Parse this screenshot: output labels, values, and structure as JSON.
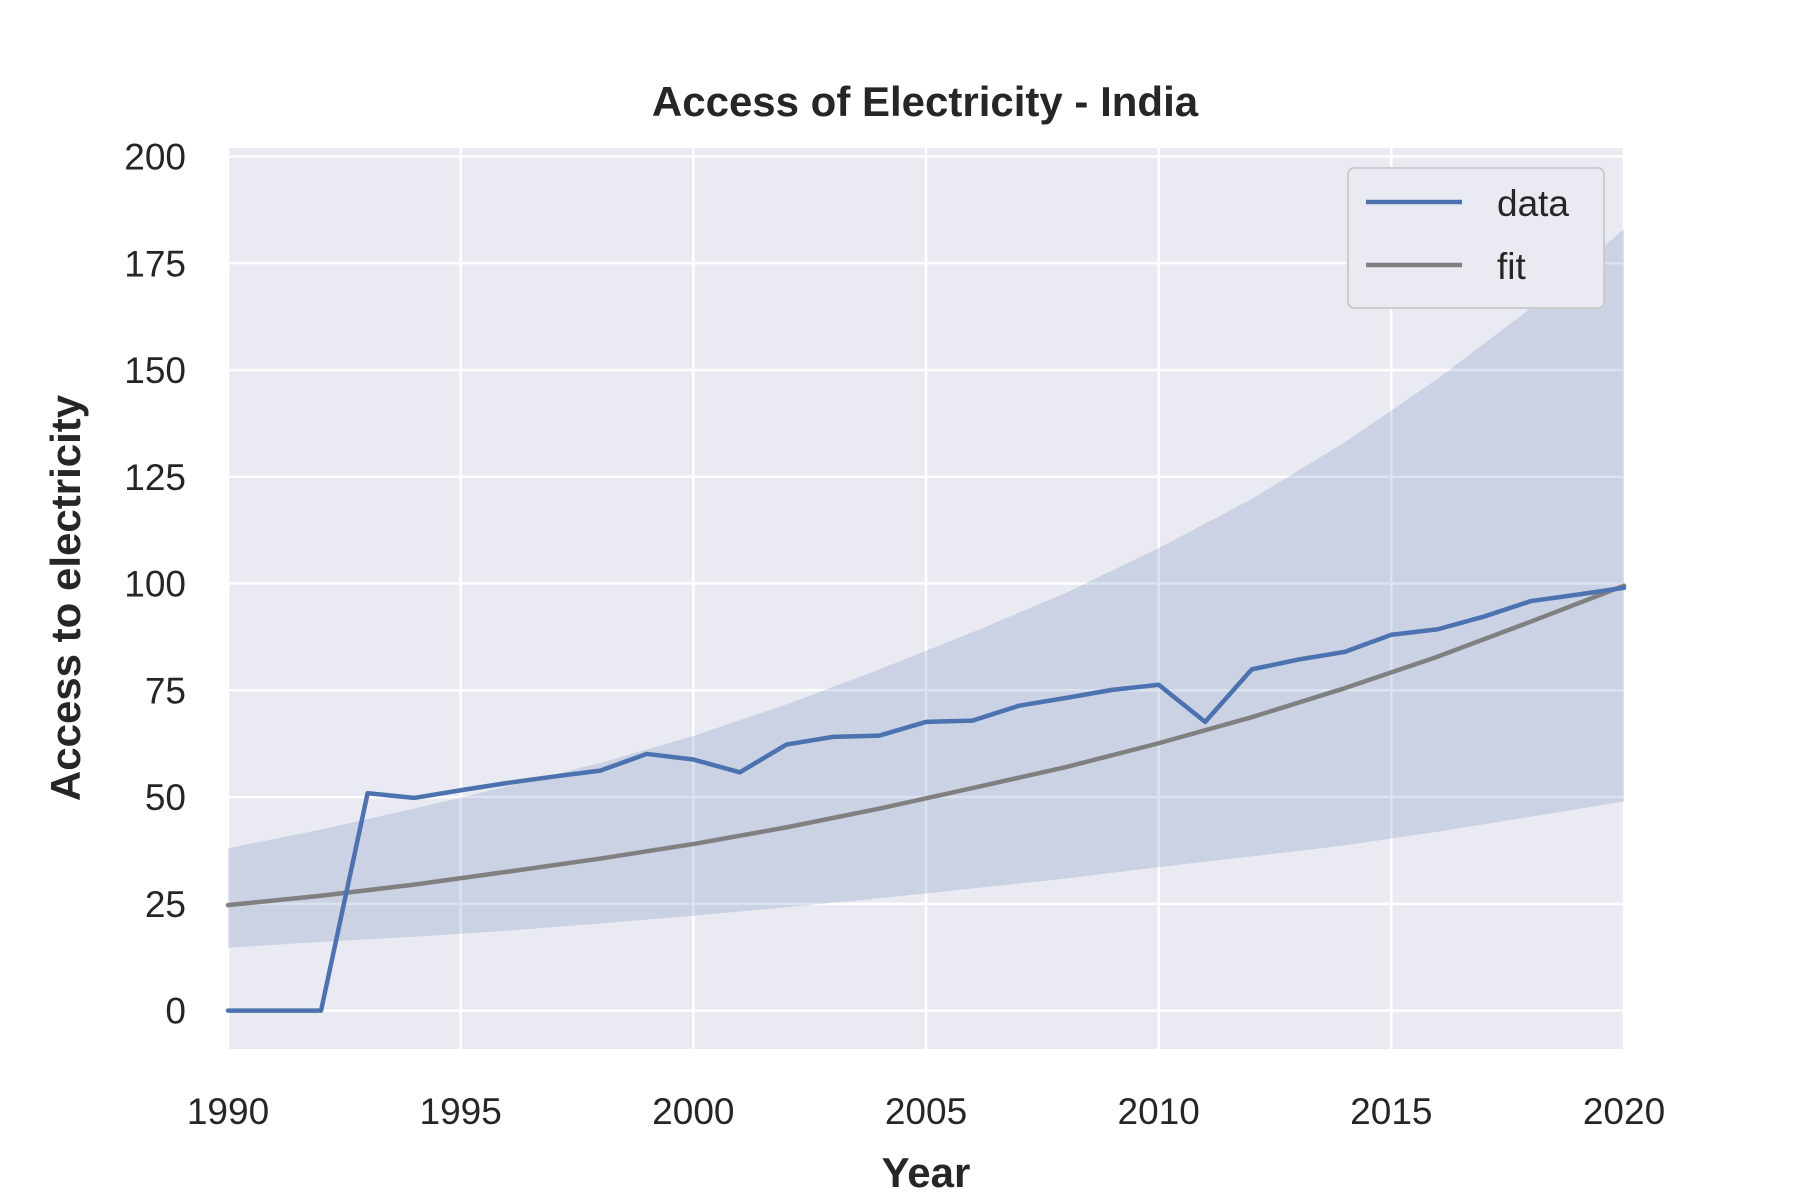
{
  "chart_data": {
    "type": "line",
    "title": "Access of Electricity - India",
    "xlabel": "Year",
    "ylabel": "Access to electricity",
    "xlim": [
      1990,
      2020
    ],
    "ylim": [
      -9,
      202
    ],
    "x_ticks": [
      1990,
      1995,
      2000,
      2005,
      2010,
      2015,
      2020
    ],
    "y_ticks": [
      0,
      25,
      50,
      75,
      100,
      125,
      150,
      175,
      200
    ],
    "grid": true,
    "legend": {
      "placement": "top-right",
      "entries": [
        "data",
        "fit"
      ]
    },
    "series": [
      {
        "name": "data",
        "color": "#4c72b0",
        "x": [
          1990,
          1991,
          1992,
          1993,
          1994,
          1995,
          1996,
          1997,
          1998,
          1999,
          2000,
          2001,
          2002,
          2003,
          2004,
          2005,
          2006,
          2007,
          2008,
          2009,
          2010,
          2011,
          2012,
          2013,
          2014,
          2015,
          2016,
          2017,
          2018,
          2019,
          2020
        ],
        "y": [
          0,
          0,
          0,
          50.9,
          49.8,
          51.6,
          53.3,
          54.8,
          56.2,
          60.1,
          58.8,
          55.8,
          62.3,
          64.1,
          64.4,
          67.6,
          67.9,
          71.4,
          73.2,
          75.1,
          76.3,
          67.6,
          79.9,
          82.2,
          84.0,
          88.0,
          89.3,
          92.3,
          95.9,
          97.4,
          99.0
        ]
      },
      {
        "name": "fit",
        "color": "#808080",
        "x": [
          1990,
          1992,
          1994,
          1996,
          1998,
          2000,
          2002,
          2004,
          2006,
          2008,
          2010,
          2012,
          2014,
          2016,
          2018,
          2020
        ],
        "y": [
          24.7,
          26.9,
          29.5,
          32.5,
          35.6,
          39.0,
          42.9,
          47.3,
          52.1,
          57.0,
          62.6,
          68.7,
          75.5,
          82.9,
          91.1,
          99.5
        ]
      }
    ],
    "confidence_band": {
      "color": "#4c72b0",
      "x": [
        1990,
        1992,
        1994,
        1996,
        1998,
        2000,
        2002,
        2004,
        2006,
        2008,
        2010,
        2012,
        2014,
        2016,
        2018,
        2020
      ],
      "upper": [
        38.0,
        42.4,
        47.3,
        52.5,
        58.0,
        64.3,
        71.7,
        79.9,
        88.6,
        97.8,
        108.3,
        119.8,
        133.1,
        148.0,
        164.5,
        183.0
      ],
      "lower": [
        14.7,
        16.1,
        17.3,
        18.7,
        20.4,
        22.2,
        24.2,
        26.3,
        28.6,
        30.9,
        33.6,
        36.1,
        38.7,
        41.9,
        45.4,
        49.0
      ]
    }
  }
}
